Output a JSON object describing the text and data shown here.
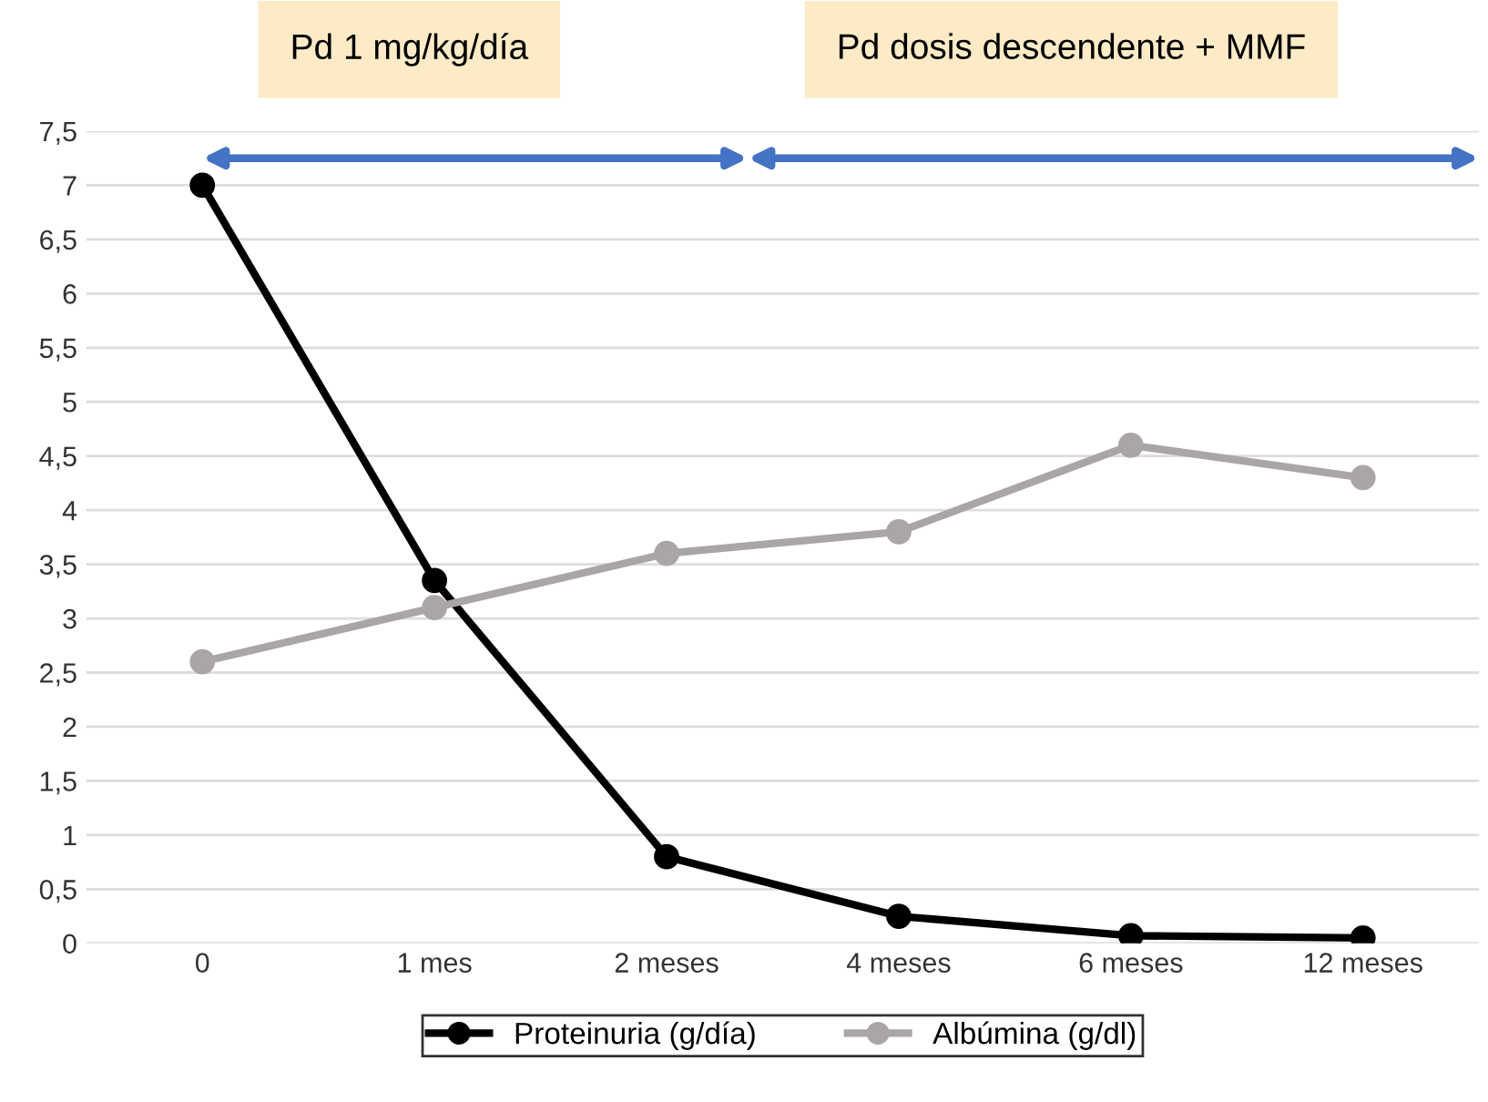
{
  "chart_data": {
    "type": "line",
    "categories": [
      "0",
      "1 mes",
      "2 meses",
      "4 meses",
      "6 meses",
      "12 meses"
    ],
    "series": [
      {
        "name": "Proteinuria (g/día)",
        "color": "#000000",
        "values": [
          7,
          3.35,
          0.8,
          0.25,
          0.07,
          0.05
        ]
      },
      {
        "name": "Albúmina (g/dl)",
        "color": "#aaa6a6",
        "values": [
          2.6,
          3.1,
          3.6,
          3.8,
          4.6,
          4.3
        ]
      }
    ],
    "ylim": [
      0,
      7.5
    ],
    "yticks": [
      {
        "value": 0,
        "label": "0"
      },
      {
        "value": 0.5,
        "label": "0,5"
      },
      {
        "value": 1,
        "label": "1"
      },
      {
        "value": 1.5,
        "label": "1,5"
      },
      {
        "value": 2,
        "label": "2"
      },
      {
        "value": 2.5,
        "label": "2,5"
      },
      {
        "value": 3,
        "label": "3"
      },
      {
        "value": 3.5,
        "label": "3,5"
      },
      {
        "value": 4,
        "label": "4"
      },
      {
        "value": 4.5,
        "label": "4,5"
      },
      {
        "value": 5,
        "label": "5"
      },
      {
        "value": 5.5,
        "label": "5,5"
      },
      {
        "value": 6,
        "label": "6"
      },
      {
        "value": 6.5,
        "label": "6,5"
      },
      {
        "value": 7,
        "label": "7"
      },
      {
        "value": 7.5,
        "label": "7,5"
      }
    ],
    "grid": "y",
    "legend": "bottom",
    "marker": "circle",
    "line_style": "solid",
    "annotations": [
      "Pd 1 mg/kg/día",
      "Pd dosis descendente + MMF"
    ]
  }
}
